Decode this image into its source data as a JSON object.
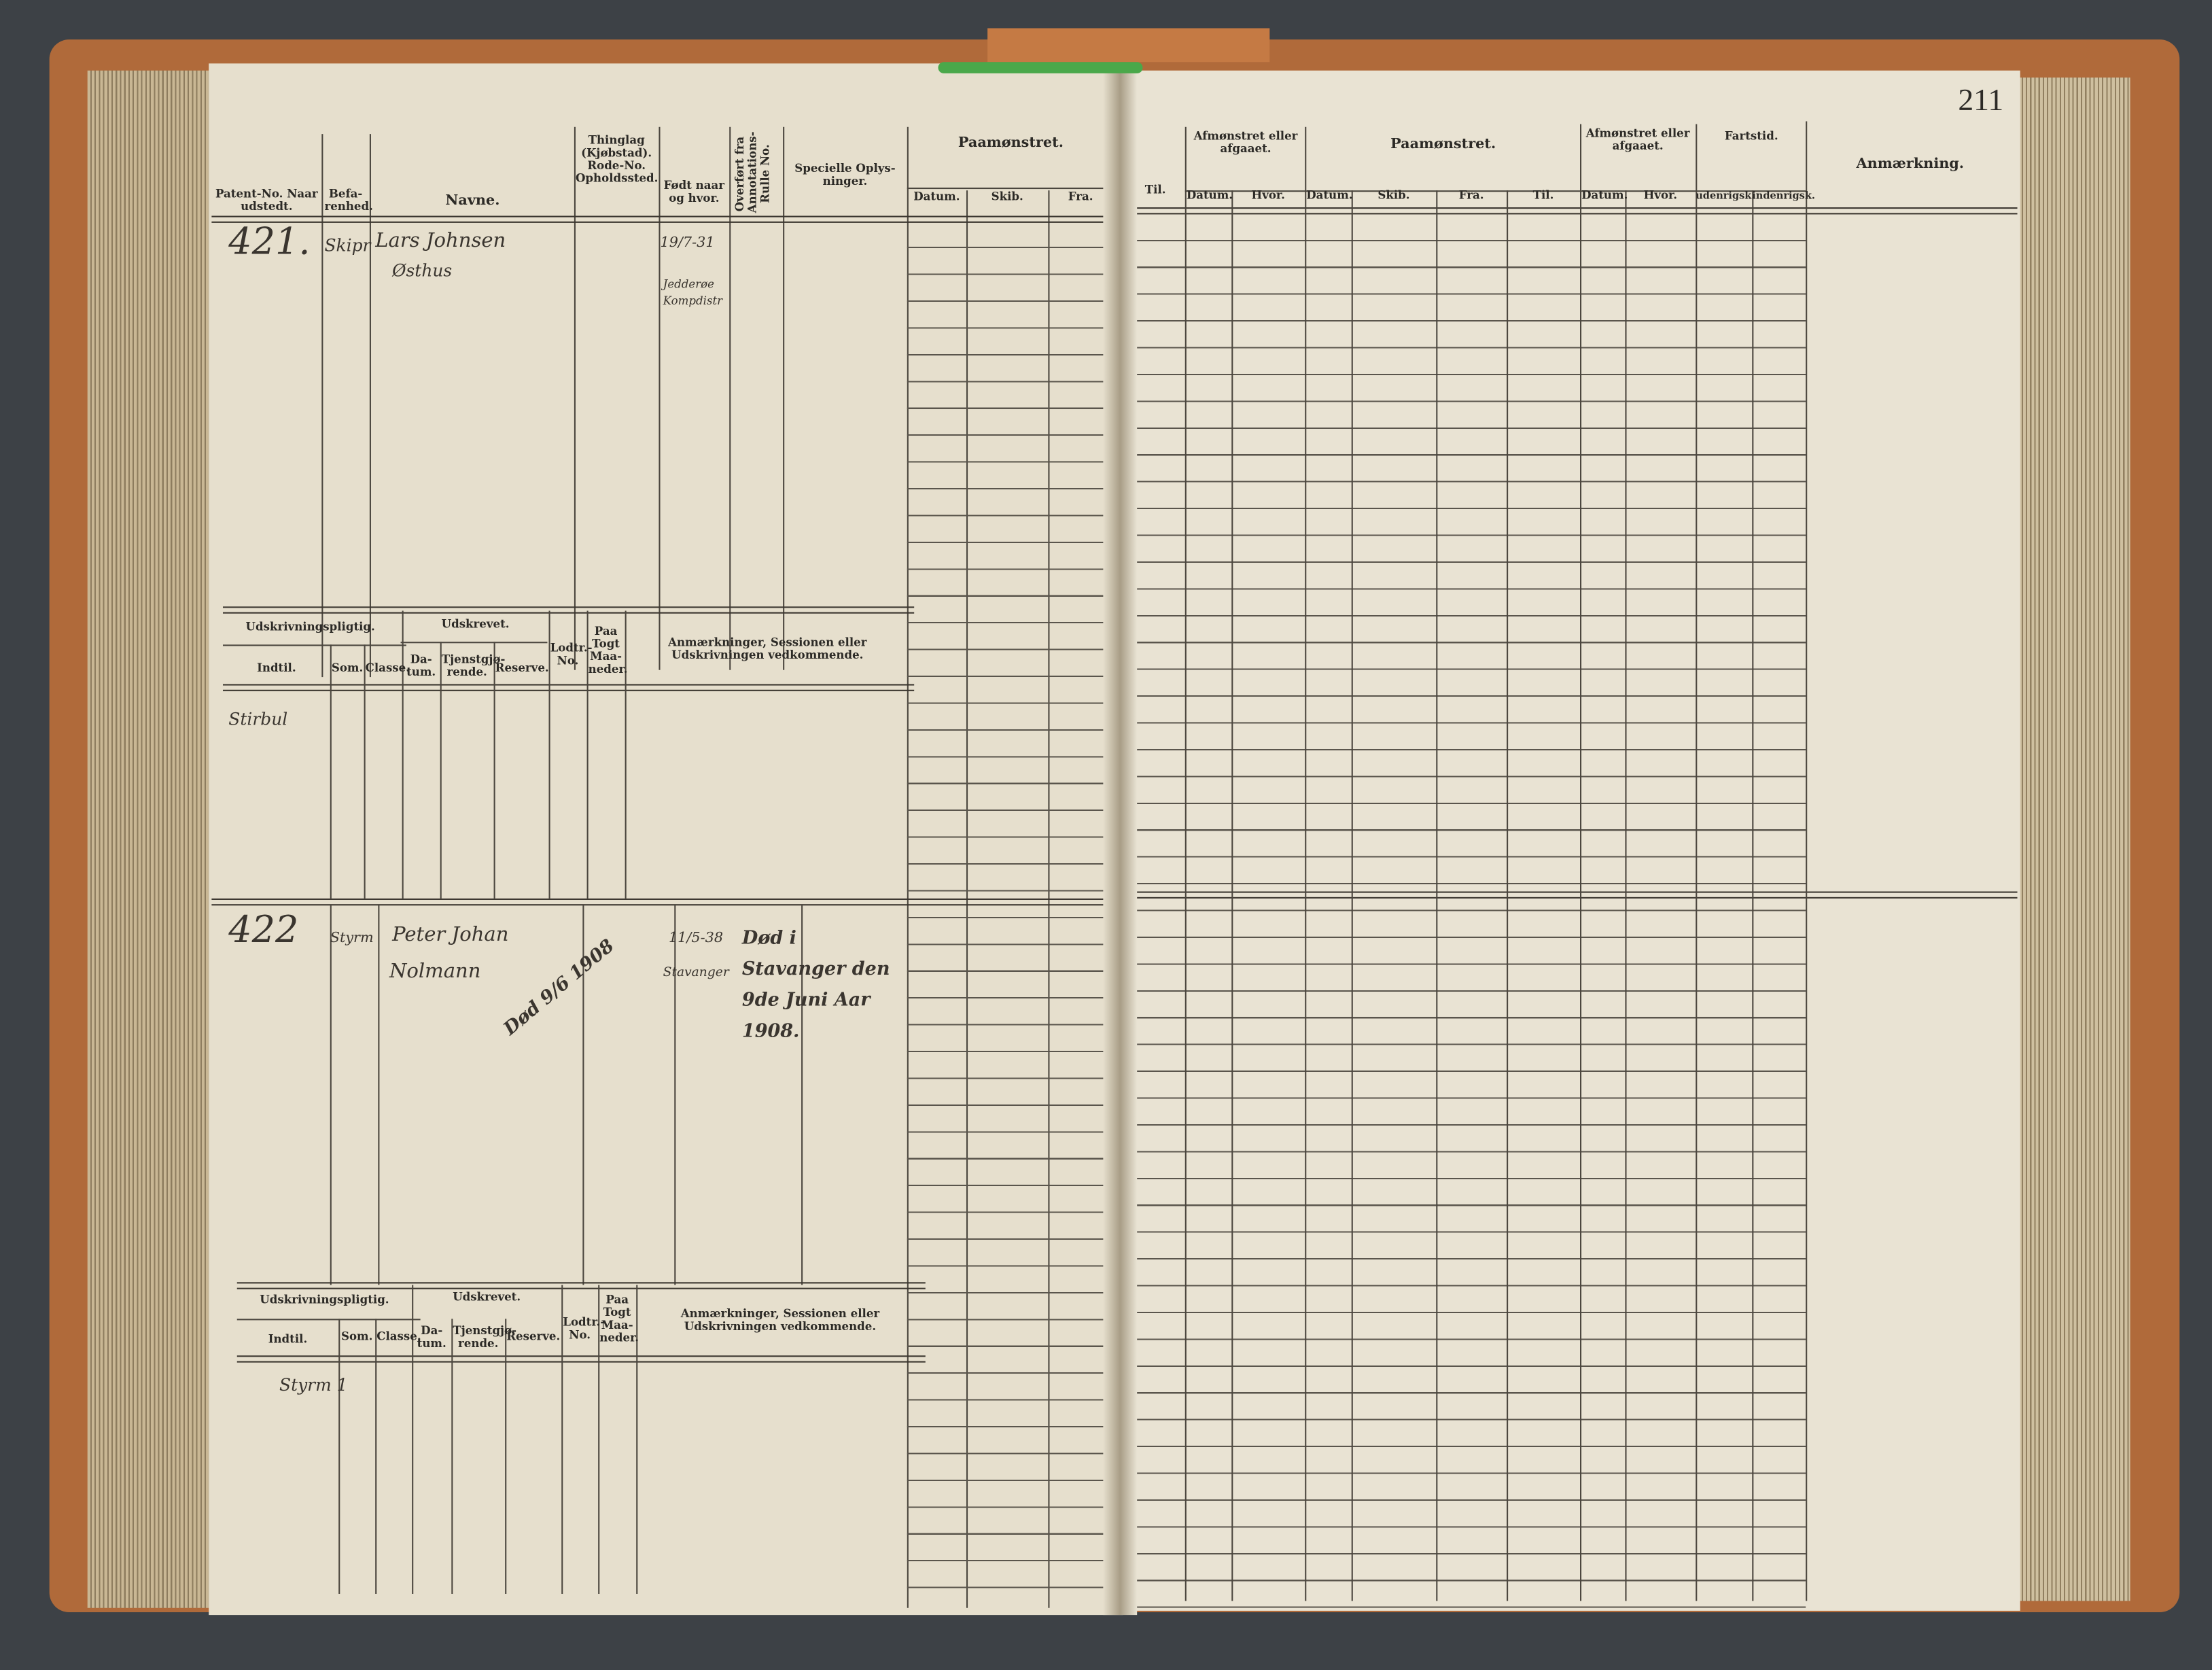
{
  "page_number": "211",
  "left_page": {
    "headers": [
      "Patent-No. Naar udstedt.",
      "Befa-renhed.",
      "Navne.",
      "Thinglag (Kjøbstad). Rode-No. Opholdssted.",
      "Født naar og hvor.",
      "Overført fra Annotations-Rulle No.",
      "Specielle Oplys-ninger.",
      "Paamønstret.",
      "Datum.",
      "Skib.",
      "Fra."
    ],
    "sub_headers": {
      "group1": "Udskrivningspligtig.",
      "group2": "Udskrevet.",
      "cols": [
        "Indtil.",
        "Som.",
        "Classe.",
        "Da-tum.",
        "Tjenstgjø-rende.",
        "Reserve.",
        "Lodtr.-No.",
        "Paa Togt Maa-neder."
      ],
      "remarks": "Anmærkninger, Sessionen eller Udskrivningen vedkommende."
    },
    "entries": [
      {
        "number": "421.",
        "rank": "Skipr",
        "name_line1": "Lars Johnsen",
        "name_line2": "Østhus",
        "born": "19/7-31",
        "born_place_1": "Jedderøe",
        "born_place_2": "Kompdistr",
        "sub_note": "Stirbul"
      },
      {
        "number": "422",
        "rank": "Styrm",
        "name_line1": "Peter Johan",
        "name_line2": "Nolmann",
        "death_mark": "Død 9/6 1908",
        "born": "11/5-38",
        "born_place_1": "Stavanger",
        "special": "Død i Stavanger den 9de Juni Aar 1908.",
        "sub_note": "Styrm 1"
      }
    ]
  },
  "right_page": {
    "headers": [
      "Til.",
      "Afmønstret eller afgaaet.",
      "Datum.",
      "Hvor.",
      "Paamønstret.",
      "Datum.",
      "Skib.",
      "Fra.",
      "Til.",
      "Afmønstret eller afgaaet.",
      "Datum.",
      "Hvor.",
      "Fartstid.",
      "udenrigsk.",
      "indenrigsk.",
      "Anmærkning."
    ]
  }
}
